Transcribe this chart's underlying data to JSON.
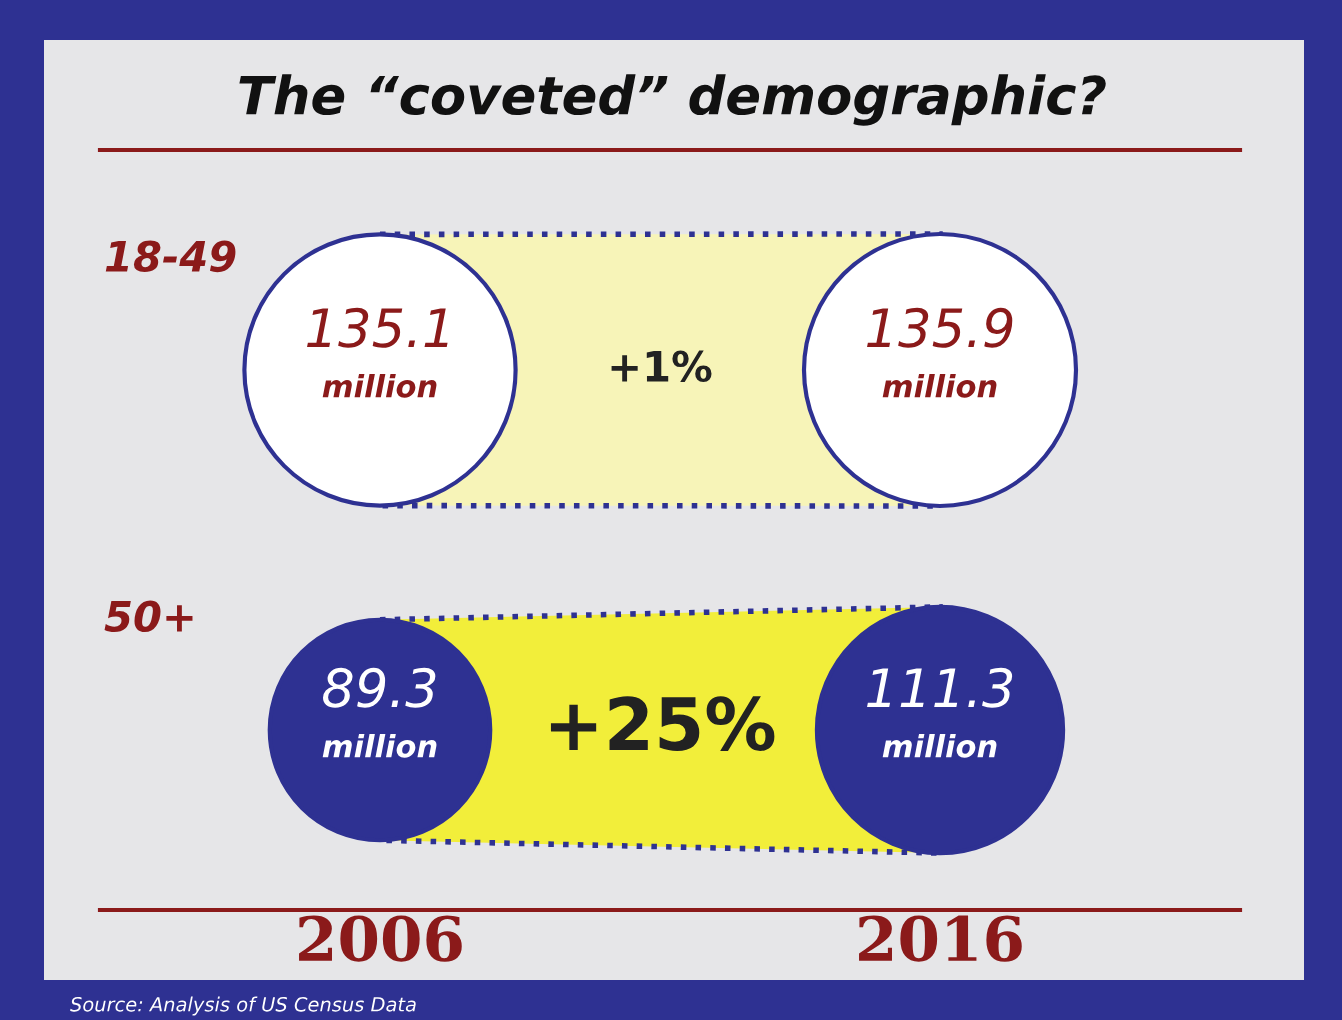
{
  "chart_data": {
    "type": "other",
    "title": "The “coveted” demographic?",
    "categories": [
      "2006",
      "2016"
    ],
    "series": [
      {
        "name": "18-49",
        "color": "#ffffff",
        "values": [
          135100000,
          135900000
        ],
        "value_labels": [
          "135.1\nmillion",
          "135.9\nmillion"
        ]
      },
      {
        "name": "50+",
        "color": "#2e3192",
        "values": [
          89300000,
          111300000
        ],
        "value_labels": [
          "89.3\nmillion",
          "111.3\nmillion"
        ]
      }
    ],
    "annotations": [
      "+1%",
      "+25%",
      "Source: Analysis of US Census Data"
    ]
  }
}
